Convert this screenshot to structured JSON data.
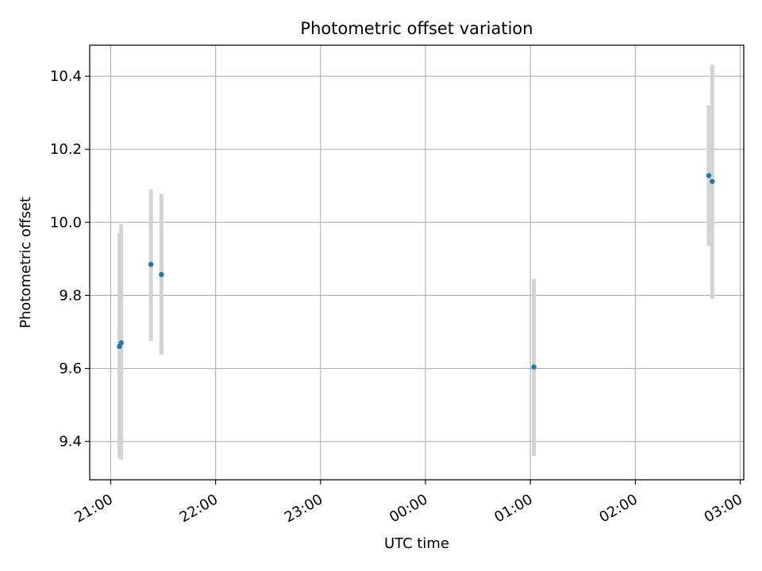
{
  "chart_data": {
    "type": "scatter",
    "title": "Photometric offset variation",
    "xlabel": "UTC time",
    "ylabel": "Photometric offset",
    "x_ticks": [
      "21:00",
      "22:00",
      "23:00",
      "00:00",
      "01:00",
      "02:00",
      "03:00"
    ],
    "y_ticks": [
      "9.4",
      "9.6",
      "9.8",
      "10.0",
      "10.2",
      "10.4"
    ],
    "xlim": [
      "20:48",
      "03:02"
    ],
    "ylim": [
      9.295,
      10.485
    ],
    "grid": true,
    "errorbar_color": "#d3d3d3",
    "point_color": "#1f77b4",
    "points": [
      {
        "x": "21:05",
        "y": 9.66,
        "ylow": 9.355,
        "yhigh": 9.97
      },
      {
        "x": "21:06",
        "y": 9.67,
        "ylow": 9.35,
        "yhigh": 9.995
      },
      {
        "x": "21:23",
        "y": 9.885,
        "ylow": 9.675,
        "yhigh": 10.09
      },
      {
        "x": "21:29",
        "y": 9.857,
        "ylow": 9.637,
        "yhigh": 10.078
      },
      {
        "x": "01:02",
        "y": 9.604,
        "ylow": 9.36,
        "yhigh": 9.845
      },
      {
        "x": "02:42",
        "y": 10.128,
        "ylow": 9.935,
        "yhigh": 10.32
      },
      {
        "x": "02:44",
        "y": 10.112,
        "ylow": 9.79,
        "yhigh": 10.432
      }
    ]
  }
}
